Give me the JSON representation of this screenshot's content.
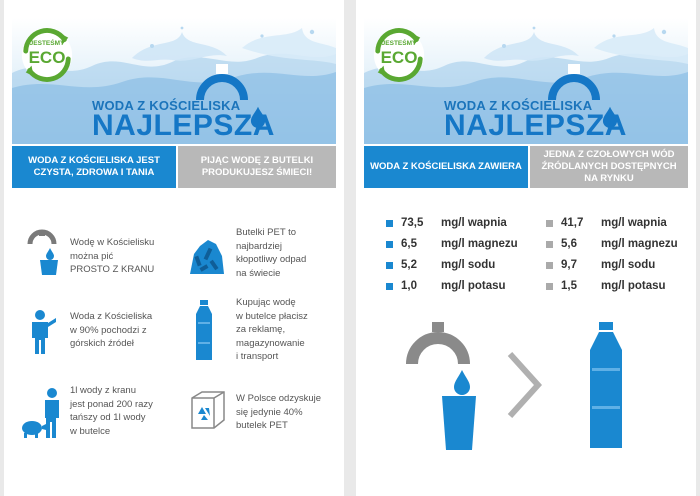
{
  "colors": {
    "brand_blue": "#1a88d0",
    "dark_blue": "#1577c6",
    "grey": "#b8b8b8",
    "eco_green": "#5aa832"
  },
  "header": {
    "eco_top": "JESTEŚMY",
    "eco_main": "ECO",
    "title_line1": "WODA Z KOŚCIELISKA",
    "title_line2": "NAJLEPSZA"
  },
  "left": {
    "band_blue": "WODA Z KOŚCIELISKA JEST CZYSTA, ZDROWA I TANIA",
    "band_grey": "PIJĄC WODĘ Z BUTELKI PRODUKUJESZ ŚMIECI!",
    "features_left": [
      {
        "icon": "tap-glass-icon",
        "lines": [
          "Wodę w Kościelisku",
          "można pić",
          "PROSTO Z KRANU"
        ]
      },
      {
        "icon": "person-pointing-icon",
        "lines": [
          "Woda z Kościeliska",
          "w 90% pochodzi z",
          "górskich źródeł"
        ]
      },
      {
        "icon": "piggy-bank-icon",
        "lines": [
          "1l wody z kranu",
          "jest ponad 200 razy",
          "tańszy od 1l wody",
          "w butelce"
        ]
      }
    ],
    "features_right": [
      {
        "icon": "bottle-pile-icon",
        "lines": [
          "Butelki PET to",
          "najbardziej",
          "kłopotliwy odpad",
          "na świecie"
        ]
      },
      {
        "icon": "bottle-icon",
        "lines": [
          "Kupując wodę",
          "w butelce płacisz",
          "za reklamę,",
          "magazynowanie",
          "i transport"
        ]
      },
      {
        "icon": "recycle-box-icon",
        "lines": [
          "W Polsce odzyskuje",
          "się jedynie 40%",
          "butelek PET"
        ]
      }
    ]
  },
  "right": {
    "band_blue": "WODA Z KOŚCIELISKA ZAWIERA",
    "band_grey": "JEDNA Z CZOŁOWYCH WÓD ŹRÓDLANYCH DOSTĘPNYCH NA RYNKU",
    "stats_kosc": [
      {
        "value": "73,5",
        "label": "mg/l wapnia"
      },
      {
        "value": "6,5",
        "label": "mg/l magnezu"
      },
      {
        "value": "5,2",
        "label": "mg/l sodu"
      },
      {
        "value": "1,0",
        "label": "mg/l potasu"
      }
    ],
    "stats_other": [
      {
        "value": "41,7",
        "label": "mg/l wapnia"
      },
      {
        "value": "5,6",
        "label": "mg/l magnezu"
      },
      {
        "value": "9,7",
        "label": "mg/l sodu"
      },
      {
        "value": "1,5",
        "label": "mg/l potasu"
      }
    ]
  }
}
